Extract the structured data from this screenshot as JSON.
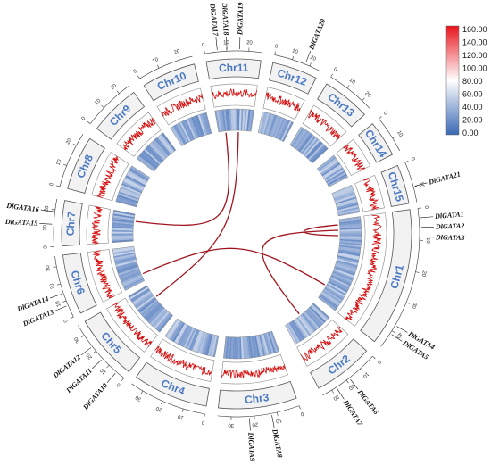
{
  "chromosomes": [
    {
      "name": "Chr1",
      "ticks": [
        "0",
        "10",
        "20",
        "30",
        "40"
      ]
    },
    {
      "name": "Chr2",
      "ticks": [
        "0",
        "10",
        "20",
        "30"
      ]
    },
    {
      "name": "Chr3",
      "ticks": [
        "0",
        "10",
        "20",
        "30"
      ]
    },
    {
      "name": "Chr4",
      "ticks": [
        "0",
        "10",
        "20",
        "30"
      ]
    },
    {
      "name": "Chr5",
      "ticks": [
        "0",
        "10",
        "20",
        "30"
      ]
    },
    {
      "name": "Chr6",
      "ticks": [
        "0",
        "10",
        "20",
        "30"
      ]
    },
    {
      "name": "Chr7",
      "ticks": [
        "0",
        "10",
        "20"
      ]
    },
    {
      "name": "Chr8",
      "ticks": [
        "0",
        "10",
        "20"
      ]
    },
    {
      "name": "Chr9",
      "ticks": [
        "0",
        "10",
        "20"
      ]
    },
    {
      "name": "Chr10",
      "ticks": [
        "0",
        "10",
        "20"
      ]
    },
    {
      "name": "Chr11",
      "ticks": [
        "0",
        "10",
        "20"
      ]
    },
    {
      "name": "Chr12",
      "ticks": [
        "0",
        "10",
        "20"
      ]
    },
    {
      "name": "Chr13",
      "ticks": [
        "0",
        "10",
        "20"
      ]
    },
    {
      "name": "Chr14",
      "ticks": [
        "0",
        "10"
      ]
    },
    {
      "name": "Chr15",
      "ticks": [
        "0",
        "10"
      ]
    }
  ],
  "genes": [
    {
      "name": "DlGATA1",
      "chr": "Chr1"
    },
    {
      "name": "DlGATA2",
      "chr": "Chr1"
    },
    {
      "name": "DlGATA3",
      "chr": "Chr1"
    },
    {
      "name": "DlGATA4",
      "chr": "Chr1"
    },
    {
      "name": "DlGATA5",
      "chr": "Chr1"
    },
    {
      "name": "DlGATA6",
      "chr": "Chr2"
    },
    {
      "name": "DlGATA7",
      "chr": "Chr2"
    },
    {
      "name": "DlGATA8",
      "chr": "Chr3"
    },
    {
      "name": "DlGATA9",
      "chr": "Chr3"
    },
    {
      "name": "DlGATA10",
      "chr": "Chr5"
    },
    {
      "name": "DlGATA11",
      "chr": "Chr5"
    },
    {
      "name": "DlGATA12",
      "chr": "Chr5"
    },
    {
      "name": "DlGATA13",
      "chr": "Chr6"
    },
    {
      "name": "DlGATA14",
      "chr": "Chr6"
    },
    {
      "name": "DlGATA15",
      "chr": "Chr7"
    },
    {
      "name": "DlGATA16",
      "chr": "Chr7"
    },
    {
      "name": "DlGATA17",
      "chr": "Chr11"
    },
    {
      "name": "DlGATA18",
      "chr": "Chr11"
    },
    {
      "name": "DlGATA19",
      "chr": "Chr11"
    },
    {
      "name": "DlGATA20",
      "chr": "Chr12"
    },
    {
      "name": "DlGATA21",
      "chr": "Chr15"
    }
  ],
  "links": [
    {
      "from": "DlGATA1",
      "to": "DlGATA3"
    },
    {
      "from": "DlGATA2",
      "to": "DlGATA6"
    },
    {
      "from": "DlGATA16",
      "to": "DlGATA17"
    },
    {
      "from": "DlGATA13",
      "to": "DlGATA4"
    },
    {
      "from": "DlGATA12",
      "to": "DlGATA19"
    }
  ],
  "legend": {
    "labels": [
      "160.00",
      "140.00",
      "120.00",
      "100.00",
      "80.00",
      "60.00",
      "40.00",
      "20.00",
      "0.00"
    ],
    "color_high": "#e8141c",
    "color_mid": "#ffffff",
    "color_low": "#3a68b4"
  },
  "colors": {
    "chr_label": "#4a78c2",
    "link": "#a0141e",
    "line_track": "#d40e0e",
    "line_track_shade": "#4a3a1a"
  }
}
